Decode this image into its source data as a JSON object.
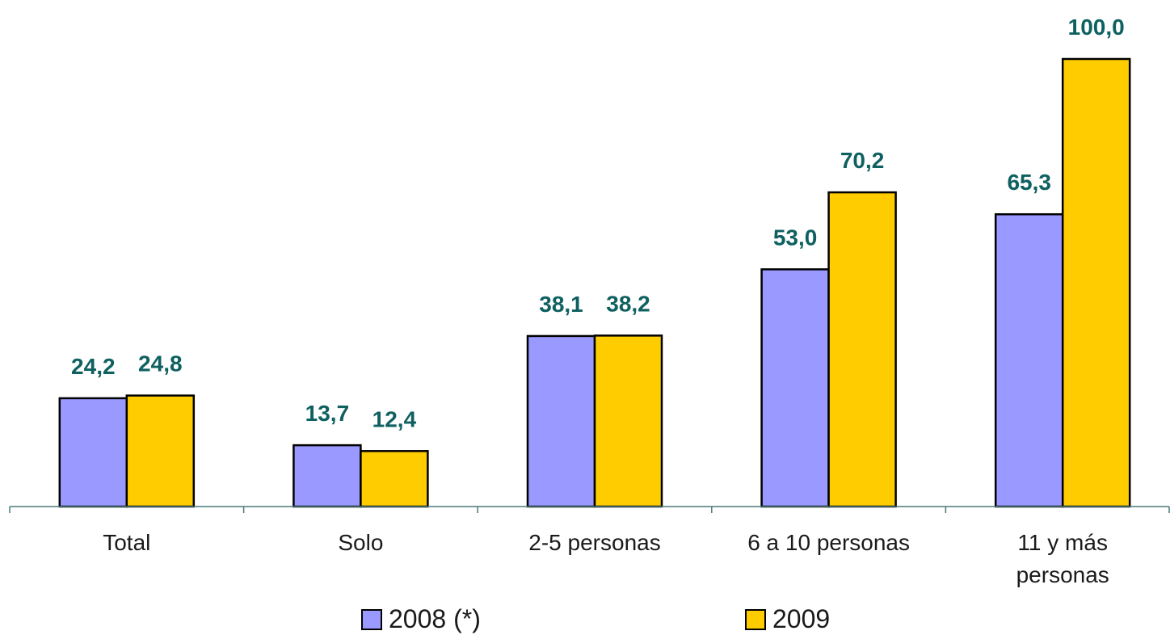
{
  "chart_data": {
    "type": "bar",
    "categories": [
      "Total",
      "Solo",
      "2-5 personas",
      "6 a 10 personas",
      "11 y más personas"
    ],
    "series": [
      {
        "name": "2008 (*)",
        "color": "#9999ff",
        "values": [
          24.2,
          13.7,
          38.1,
          53.0,
          65.3
        ],
        "value_labels": [
          "24,2",
          "13,7",
          "38,1",
          "53,0",
          "65,3"
        ]
      },
      {
        "name": "2009",
        "color": "#ffcc00",
        "values": [
          24.8,
          12.4,
          38.2,
          70.2,
          100.0
        ],
        "value_labels": [
          "24,8",
          "12,4",
          "38,2",
          "70,2",
          "100,0"
        ]
      }
    ],
    "ylim": [
      0,
      100
    ],
    "legend": "bottom"
  }
}
